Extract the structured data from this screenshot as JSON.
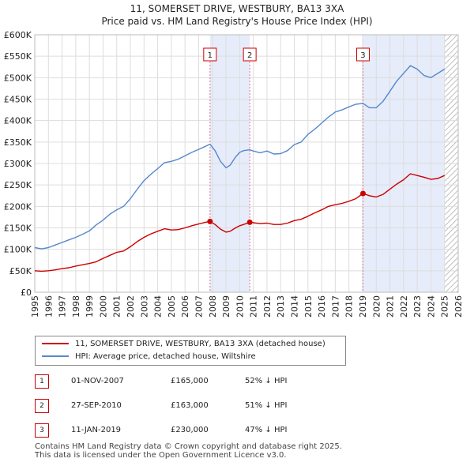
{
  "header": {
    "title": "11, SOMERSET DRIVE, WESTBURY, BA13 3XA",
    "subtitle": "Price paid vs. HM Land Registry's House Price Index (HPI)"
  },
  "chart_data": {
    "type": "line",
    "title": "11, SOMERSET DRIVE, WESTBURY, BA13 3XA",
    "subtitle": "Price paid vs. HM Land Registry's House Price Index (HPI)",
    "xlim": [
      1995,
      2026
    ],
    "ylim": [
      0,
      600000
    ],
    "x_ticks": [
      1995,
      1996,
      1997,
      1998,
      1999,
      2000,
      2001,
      2002,
      2003,
      2004,
      2005,
      2006,
      2007,
      2008,
      2009,
      2010,
      2011,
      2012,
      2013,
      2014,
      2015,
      2016,
      2017,
      2018,
      2019,
      2020,
      2021,
      2022,
      2023,
      2024,
      2025,
      2026
    ],
    "x_tick_labels": [
      "1995",
      "1996",
      "1997",
      "1998",
      "1999",
      "2000",
      "2001",
      "2002",
      "2003",
      "2004",
      "2005",
      "2006",
      "2007",
      "2008",
      "2009",
      "2010",
      "2011",
      "2012",
      "2013",
      "2014",
      "2015",
      "2016",
      "2017",
      "2018",
      "2019",
      "2020",
      "2021",
      "2022",
      "2023",
      "2024",
      "2025",
      "2026"
    ],
    "y_ticks": [
      0,
      50000,
      100000,
      150000,
      200000,
      250000,
      300000,
      350000,
      400000,
      450000,
      500000,
      550000,
      600000
    ],
    "y_tick_labels": [
      "£0",
      "£50K",
      "£100K",
      "£150K",
      "£200K",
      "£250K",
      "£300K",
      "£350K",
      "£400K",
      "£450K",
      "£500K",
      "£550K",
      "£600K"
    ],
    "grid": true,
    "shaded_regions": [
      [
        2007.83,
        2010.74
      ],
      [
        2019.03,
        2026
      ]
    ],
    "hatched_region": [
      2025.0,
      2026
    ],
    "series": [
      {
        "name": "11, SOMERSET DRIVE, WESTBURY, BA13 3XA (detached house)",
        "color": "#cc0000",
        "x": [
          1995,
          1995.5,
          1996,
          1996.5,
          1997,
          1997.5,
          1998,
          1998.5,
          1999,
          1999.5,
          2000,
          2000.5,
          2001,
          2001.5,
          2002,
          2002.5,
          2003,
          2003.5,
          2004,
          2004.5,
          2005,
          2005.5,
          2006,
          2006.5,
          2007,
          2007.5,
          2007.83,
          2008.2,
          2008.6,
          2009,
          2009.3,
          2009.7,
          2010,
          2010.3,
          2010.74,
          2011,
          2011.5,
          2012,
          2012.5,
          2013,
          2013.5,
          2014,
          2014.5,
          2015,
          2015.5,
          2016,
          2016.5,
          2017,
          2017.5,
          2018,
          2018.5,
          2019.03,
          2019.5,
          2020,
          2020.5,
          2021,
          2021.5,
          2022,
          2022.5,
          2023,
          2023.5,
          2024,
          2024.5,
          2025.0
        ],
        "y": [
          50000,
          49000,
          50000,
          52000,
          55000,
          57000,
          61000,
          64000,
          67000,
          71000,
          79000,
          86000,
          93000,
          96000,
          106000,
          118000,
          128000,
          136000,
          142000,
          148000,
          145000,
          146000,
          150000,
          155000,
          159000,
          163000,
          165000,
          158000,
          147000,
          140000,
          142000,
          150000,
          155000,
          158000,
          163000,
          162000,
          160000,
          161000,
          158000,
          158000,
          161000,
          167000,
          170000,
          177000,
          185000,
          192000,
          200000,
          204000,
          207000,
          212000,
          218000,
          230000,
          225000,
          222000,
          228000,
          240000,
          252000,
          262000,
          276000,
          272000,
          268000,
          263000,
          265000,
          272000
        ]
      },
      {
        "name": "HPI: Average price, detached house, Wiltshire",
        "color": "#5588cc",
        "x": [
          1995,
          1995.5,
          1996,
          1996.5,
          1997,
          1997.5,
          1998,
          1998.5,
          1999,
          1999.5,
          2000,
          2000.5,
          2001,
          2001.5,
          2002,
          2002.5,
          2003,
          2003.5,
          2004,
          2004.5,
          2005,
          2005.5,
          2006,
          2006.5,
          2007,
          2007.5,
          2007.83,
          2008.2,
          2008.6,
          2009,
          2009.3,
          2009.7,
          2010,
          2010.3,
          2010.74,
          2011,
          2011.5,
          2012,
          2012.5,
          2013,
          2013.5,
          2014,
          2014.5,
          2015,
          2015.5,
          2016,
          2016.5,
          2017,
          2017.5,
          2018,
          2018.5,
          2019.03,
          2019.5,
          2020,
          2020.5,
          2021,
          2021.5,
          2022,
          2022.5,
          2023,
          2023.5,
          2024,
          2024.5,
          2025.0
        ],
        "y": [
          104000,
          101000,
          104000,
          110000,
          116000,
          122000,
          128000,
          135000,
          143000,
          157000,
          168000,
          182000,
          192000,
          200000,
          218000,
          240000,
          260000,
          275000,
          288000,
          302000,
          305000,
          310000,
          318000,
          326000,
          333000,
          340000,
          345000,
          330000,
          305000,
          290000,
          296000,
          315000,
          326000,
          330000,
          332000,
          329000,
          325000,
          329000,
          322000,
          323000,
          330000,
          344000,
          350000,
          368000,
          380000,
          394000,
          408000,
          420000,
          425000,
          432000,
          438000,
          440000,
          430000,
          430000,
          445000,
          468000,
          492000,
          510000,
          528000,
          520000,
          505000,
          500000,
          510000,
          520000
        ]
      }
    ],
    "sale_markers": [
      {
        "label": "1",
        "x": 2007.83,
        "y": 165000
      },
      {
        "label": "2",
        "x": 2010.74,
        "y": 163000
      },
      {
        "label": "3",
        "x": 2019.03,
        "y": 230000
      }
    ]
  },
  "legend": {
    "property_label": "11, SOMERSET DRIVE, WESTBURY, BA13 3XA (detached house)",
    "hpi_label": "HPI: Average price, detached house, Wiltshire"
  },
  "transactions": [
    {
      "num": "1",
      "date": "01-NOV-2007",
      "price": "£165,000",
      "hpi": "52% ↓ HPI"
    },
    {
      "num": "2",
      "date": "27-SEP-2010",
      "price": "£163,000",
      "hpi": "51% ↓ HPI"
    },
    {
      "num": "3",
      "date": "11-JAN-2019",
      "price": "£230,000",
      "hpi": "47% ↓ HPI"
    }
  ],
  "footer": {
    "line1": "Contains HM Land Registry data © Crown copyright and database right 2025.",
    "line2": "This data is licensed under the Open Government Licence v3.0."
  },
  "colors": {
    "property": "#cc0000",
    "hpi": "#5588cc",
    "shade": "#e6ecfa",
    "grid": "#dddddd",
    "marker_line": "#dd7788"
  }
}
